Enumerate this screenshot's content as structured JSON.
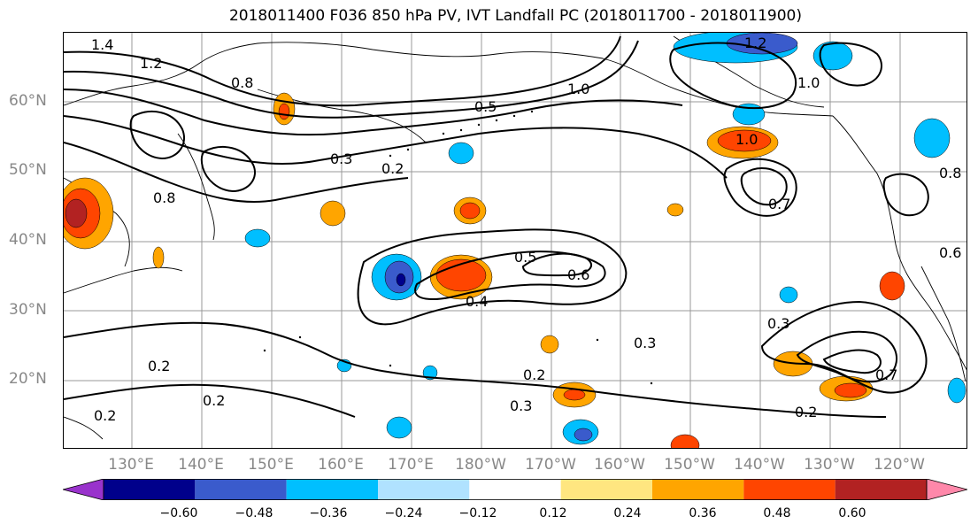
{
  "title": "2018011400 F036 850 hPa PV, IVT Landfall PC (2018011700 - 2018011900)",
  "axes": {
    "lat_labels": [
      "60°N",
      "50°N",
      "40°N",
      "30°N",
      "20°N"
    ],
    "lon_labels": [
      "130°E",
      "140°E",
      "150°E",
      "160°E",
      "170°E",
      "180°W",
      "170°W",
      "160°W",
      "150°W",
      "140°W",
      "130°W",
      "120°W"
    ]
  },
  "contour_labels": [
    "1.4",
    "1.2",
    "0.8",
    "0.5",
    "0.3",
    "0.2",
    "0.6",
    "0.8",
    "1.0",
    "1.2",
    "1.0",
    "1.0",
    "0.7",
    "0.8",
    "0.4",
    "0.5",
    "0.6",
    "0.3",
    "0.2",
    "0.3",
    "0.2",
    "0.2",
    "0.2",
    "0.3",
    "0.7",
    "0.2"
  ],
  "colorbar": {
    "colors": [
      "#9933cc",
      "#00008b",
      "#3a5bcc",
      "#00bfff",
      "#b0e2ff",
      "#ffffff",
      "#ffe680",
      "#ffa500",
      "#ff4500",
      "#b22222",
      "#ff88aa"
    ],
    "tick_labels": [
      "−0.60",
      "−0.48",
      "−0.36",
      "−0.24",
      "−0.12",
      "0.12",
      "0.24",
      "0.36",
      "0.48",
      "0.60"
    ]
  }
}
